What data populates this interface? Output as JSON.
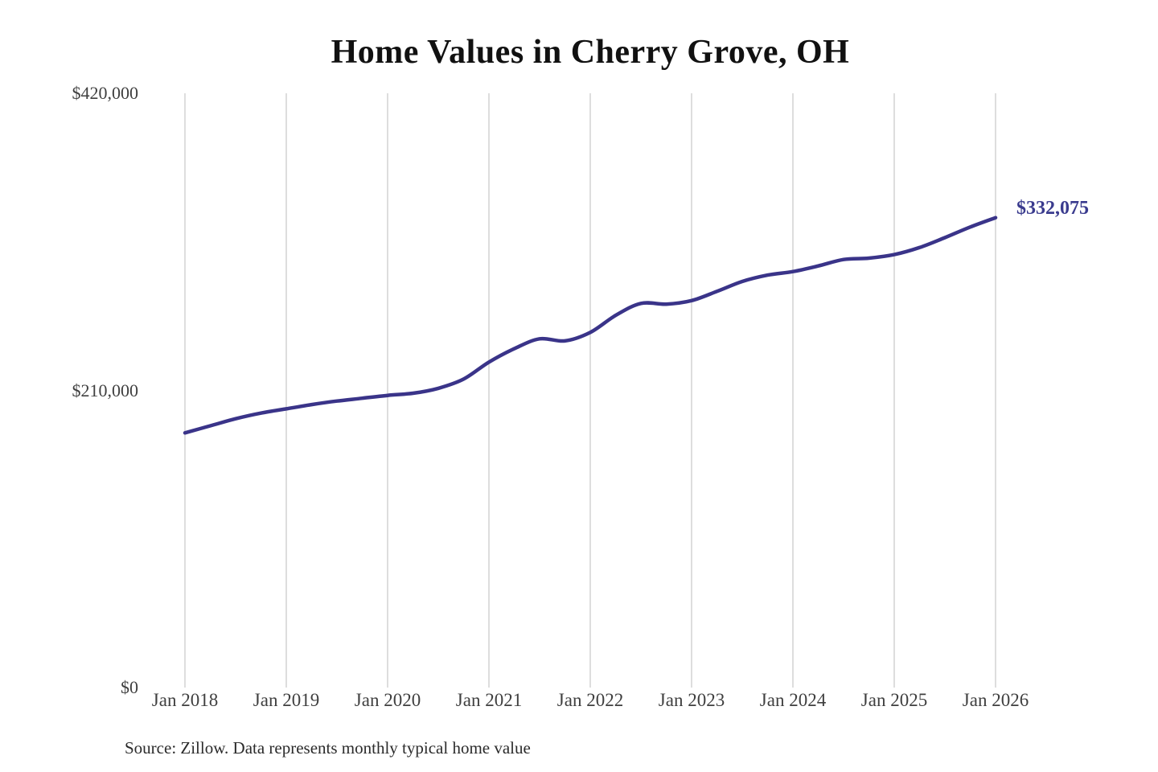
{
  "page": {
    "title": "Home Values in Cherry Grove, OH",
    "source_note": "Source: Zillow. Data represents monthly typical home value"
  },
  "colors": {
    "background": "#ffffff",
    "title_text": "#111111",
    "axis_label_text": "#3f3f3f",
    "source_text": "#2b2b2b",
    "gridline": "#cbcbcb",
    "line": "#3a3489",
    "end_label_text": "#3a3b8e"
  },
  "chart_data": {
    "type": "line",
    "title": "Home Values in Cherry Grove, OH",
    "grid": "vertical-only",
    "legend": "none",
    "ylim": [
      0,
      420000
    ],
    "xlim": [
      "2018-01",
      "2026-01"
    ],
    "y_ticks": [
      {
        "value": 0,
        "label": "$0"
      },
      {
        "value": 210000,
        "label": "$210,000"
      },
      {
        "value": 420000,
        "label": "$420,000"
      }
    ],
    "x_ticks": [
      "Jan 2018",
      "Jan 2019",
      "Jan 2020",
      "Jan 2021",
      "Jan 2022",
      "Jan 2023",
      "Jan 2024",
      "Jan 2025",
      "Jan 2026"
    ],
    "end_label": "$332,075",
    "end_value": 332075,
    "series": [
      {
        "name": "Monthly typical home value",
        "points": [
          {
            "date": "2018-01",
            "value": 180000
          },
          {
            "date": "2018-04",
            "value": 185000
          },
          {
            "date": "2018-07",
            "value": 190000
          },
          {
            "date": "2018-10",
            "value": 194000
          },
          {
            "date": "2019-01",
            "value": 197000
          },
          {
            "date": "2019-04",
            "value": 200000
          },
          {
            "date": "2019-07",
            "value": 202500
          },
          {
            "date": "2019-10",
            "value": 204500
          },
          {
            "date": "2020-01",
            "value": 206500
          },
          {
            "date": "2020-04",
            "value": 208000
          },
          {
            "date": "2020-07",
            "value": 211500
          },
          {
            "date": "2020-10",
            "value": 218000
          },
          {
            "date": "2021-01",
            "value": 230000
          },
          {
            "date": "2021-04",
            "value": 239500
          },
          {
            "date": "2021-07",
            "value": 246500
          },
          {
            "date": "2021-10",
            "value": 245000
          },
          {
            "date": "2022-01",
            "value": 251000
          },
          {
            "date": "2022-04",
            "value": 263000
          },
          {
            "date": "2022-07",
            "value": 271500
          },
          {
            "date": "2022-10",
            "value": 271000
          },
          {
            "date": "2023-01",
            "value": 273500
          },
          {
            "date": "2023-04",
            "value": 280000
          },
          {
            "date": "2023-07",
            "value": 287000
          },
          {
            "date": "2023-10",
            "value": 291500
          },
          {
            "date": "2024-01",
            "value": 294000
          },
          {
            "date": "2024-04",
            "value": 298000
          },
          {
            "date": "2024-07",
            "value": 302500
          },
          {
            "date": "2024-10",
            "value": 303500
          },
          {
            "date": "2025-01",
            "value": 306000
          },
          {
            "date": "2025-04",
            "value": 311000
          },
          {
            "date": "2025-07",
            "value": 318000
          },
          {
            "date": "2025-10",
            "value": 325500
          },
          {
            "date": "2026-01",
            "value": 332075
          }
        ]
      }
    ]
  }
}
